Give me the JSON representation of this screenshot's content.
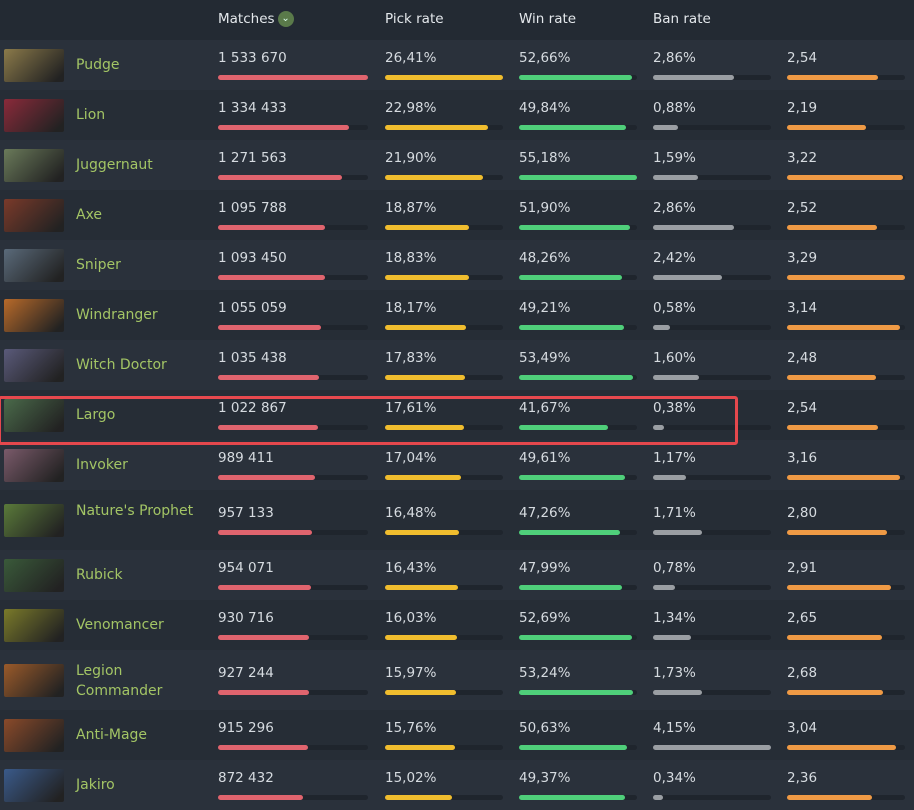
{
  "headers": {
    "matches": "Matches",
    "pick": "Pick rate",
    "win": "Win rate",
    "ban": "Ban rate"
  },
  "sort_icon": "chevron-down-icon",
  "colors": {
    "matches": "#e0646e",
    "pick": "#f0bd2e",
    "win": "#4fcf7a",
    "ban": "#9a9ea3",
    "kda": "#ef9a45",
    "highlight": "#e5484d",
    "name": "#a3c565"
  },
  "max": {
    "matches": 1533670,
    "pick": 26.41,
    "win": 55.18,
    "ban": 4.15,
    "kda": 3.29
  },
  "highlighted_hero": "Largo",
  "heroes": [
    {
      "name": "Pudge",
      "matches": "1 533 670",
      "m": 1533670,
      "pick": "26,41%",
      "p": 26.41,
      "win": "52,66%",
      "w": 52.66,
      "ban": "2,86%",
      "b": 2.86,
      "kda": "2,54",
      "k": 2.54,
      "c": "#8b7a4a"
    },
    {
      "name": "Lion",
      "matches": "1 334 433",
      "m": 1334433,
      "pick": "22,98%",
      "p": 22.98,
      "win": "49,84%",
      "w": 49.84,
      "ban": "0,88%",
      "b": 0.88,
      "kda": "2,19",
      "k": 2.19,
      "c": "#8a2a3a"
    },
    {
      "name": "Juggernaut",
      "matches": "1 271 563",
      "m": 1271563,
      "pick": "21,90%",
      "p": 21.9,
      "win": "55,18%",
      "w": 55.18,
      "ban": "1,59%",
      "b": 1.59,
      "kda": "3,22",
      "k": 3.22,
      "c": "#6a7a5a"
    },
    {
      "name": "Axe",
      "matches": "1 095 788",
      "m": 1095788,
      "pick": "18,87%",
      "p": 18.87,
      "win": "51,90%",
      "w": 51.9,
      "ban": "2,86%",
      "b": 2.86,
      "kda": "2,52",
      "k": 2.52,
      "c": "#7a3a2a"
    },
    {
      "name": "Sniper",
      "matches": "1 093 450",
      "m": 1093450,
      "pick": "18,83%",
      "p": 18.83,
      "win": "48,26%",
      "w": 48.26,
      "ban": "2,42%",
      "b": 2.42,
      "kda": "3,29",
      "k": 3.29,
      "c": "#5a6a7a"
    },
    {
      "name": "Windranger",
      "matches": "1 055 059",
      "m": 1055059,
      "pick": "18,17%",
      "p": 18.17,
      "win": "49,21%",
      "w": 49.21,
      "ban": "0,58%",
      "b": 0.58,
      "kda": "3,14",
      "k": 3.14,
      "c": "#b86a2a"
    },
    {
      "name": "Witch Doctor",
      "matches": "1 035 438",
      "m": 1035438,
      "pick": "17,83%",
      "p": 17.83,
      "win": "53,49%",
      "w": 53.49,
      "ban": "1,60%",
      "b": 1.6,
      "kda": "2,48",
      "k": 2.48,
      "c": "#5a5a7a"
    },
    {
      "name": "Largo",
      "matches": "1 022 867",
      "m": 1022867,
      "pick": "17,61%",
      "p": 17.61,
      "win": "41,67%",
      "w": 41.67,
      "ban": "0,38%",
      "b": 0.38,
      "kda": "2,54",
      "k": 2.54,
      "c": "#4a6a4a"
    },
    {
      "name": "Invoker",
      "matches": "989 411",
      "m": 989411,
      "pick": "17,04%",
      "p": 17.04,
      "win": "49,61%",
      "w": 49.61,
      "ban": "1,17%",
      "b": 1.17,
      "kda": "3,16",
      "k": 3.16,
      "c": "#7a5a6a"
    },
    {
      "name": "Nature's Prophet",
      "matches": "957 133",
      "m": 957133,
      "pick": "16,48%",
      "p": 16.48,
      "win": "47,26%",
      "w": 47.26,
      "ban": "1,71%",
      "b": 1.71,
      "kda": "2,80",
      "k": 2.8,
      "c": "#5a7a3a"
    },
    {
      "name": "Rubick",
      "matches": "954 071",
      "m": 954071,
      "pick": "16,43%",
      "p": 16.43,
      "win": "47,99%",
      "w": 47.99,
      "ban": "0,78%",
      "b": 0.78,
      "kda": "2,91",
      "k": 2.91,
      "c": "#3a5a3a"
    },
    {
      "name": "Venomancer",
      "matches": "930 716",
      "m": 930716,
      "pick": "16,03%",
      "p": 16.03,
      "win": "52,69%",
      "w": 52.69,
      "ban": "1,34%",
      "b": 1.34,
      "kda": "2,65",
      "k": 2.65,
      "c": "#7a7a2a"
    },
    {
      "name": "Legion Commander",
      "matches": "927 244",
      "m": 927244,
      "pick": "15,97%",
      "p": 15.97,
      "win": "53,24%",
      "w": 53.24,
      "ban": "1,73%",
      "b": 1.73,
      "kda": "2,68",
      "k": 2.68,
      "c": "#9a5a2a"
    },
    {
      "name": "Anti-Mage",
      "matches": "915 296",
      "m": 915296,
      "pick": "15,76%",
      "p": 15.76,
      "win": "50,63%",
      "w": 50.63,
      "ban": "4,15%",
      "b": 4.15,
      "kda": "3,04",
      "k": 3.04,
      "c": "#8a4a2a"
    },
    {
      "name": "Jakiro",
      "matches": "872 432",
      "m": 872432,
      "pick": "15,02%",
      "p": 15.02,
      "win": "49,37%",
      "w": 49.37,
      "ban": "0,34%",
      "b": 0.34,
      "kda": "2,36",
      "k": 2.36,
      "c": "#3a5a8a"
    }
  ]
}
